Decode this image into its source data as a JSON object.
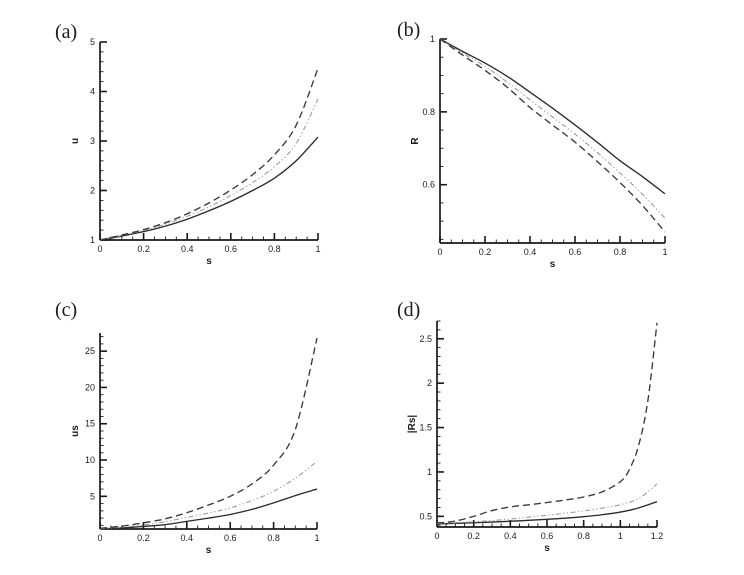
{
  "figure": {
    "background": "#ffffff",
    "text_color": "#1d1d1d",
    "axis_color": "#1a1a1a"
  },
  "chart_data": [
    {
      "type": "line",
      "panel_label": "(a)",
      "xlabel": "s",
      "ylabel": "u",
      "xlim": [
        0,
        1
      ],
      "ylim": [
        1,
        5
      ],
      "x_ticks": [
        0,
        0.2,
        0.4,
        0.6,
        0.8,
        1
      ],
      "x_tick_labels": [
        "0",
        "0.2",
        "0.4",
        "0.6",
        "0.8",
        "1"
      ],
      "x_minor_step": 0.05,
      "y_ticks": [
        1,
        2,
        3,
        4,
        5
      ],
      "y_tick_labels": [
        "1",
        "2",
        "3",
        "4",
        "5"
      ],
      "y_minor_step": 0.2,
      "grid": false,
      "legend": "none",
      "series": [
        {
          "name": "solid",
          "style": "solid",
          "color": "#2a2a2a",
          "x": [
            0,
            0.1,
            0.2,
            0.3,
            0.4,
            0.5,
            0.6,
            0.7,
            0.8,
            0.9,
            1
          ],
          "y": [
            1,
            1.08,
            1.17,
            1.28,
            1.42,
            1.59,
            1.78,
            2.0,
            2.25,
            2.6,
            3.08
          ]
        },
        {
          "name": "dash-dot-dot",
          "style": "dashdotdot",
          "color": "#9c9c9c",
          "x": [
            0,
            0.1,
            0.2,
            0.3,
            0.4,
            0.5,
            0.6,
            0.7,
            0.8,
            0.9,
            1
          ],
          "y": [
            1,
            1.09,
            1.19,
            1.32,
            1.48,
            1.67,
            1.9,
            2.16,
            2.48,
            2.95,
            3.85
          ]
        },
        {
          "name": "dashed",
          "style": "dashed",
          "color": "#3a3a3a",
          "x": [
            0,
            0.1,
            0.2,
            0.3,
            0.4,
            0.5,
            0.6,
            0.7,
            0.8,
            0.9,
            1
          ],
          "y": [
            1,
            1.1,
            1.21,
            1.35,
            1.53,
            1.75,
            2.01,
            2.32,
            2.72,
            3.32,
            4.47
          ]
        }
      ]
    },
    {
      "type": "line",
      "panel_label": "(b)",
      "xlabel": "s",
      "ylabel": "R",
      "xlim": [
        0,
        1
      ],
      "ylim": [
        0.44,
        1.0
      ],
      "x_ticks": [
        0,
        0.2,
        0.4,
        0.6,
        0.8,
        1
      ],
      "x_tick_labels": [
        "0",
        "0.2",
        "0.4",
        "0.6",
        "0.8",
        "1"
      ],
      "x_minor_step": 0.05,
      "y_ticks": [
        0.6,
        0.8,
        1
      ],
      "y_tick_labels": [
        "0.6",
        "0.8",
        "1"
      ],
      "y_minor_step": 0.05,
      "grid": false,
      "legend": "none",
      "series": [
        {
          "name": "solid",
          "style": "solid",
          "color": "#2a2a2a",
          "x": [
            0,
            0.1,
            0.2,
            0.3,
            0.4,
            0.5,
            0.6,
            0.7,
            0.8,
            0.9,
            1
          ],
          "y": [
            1,
            0.966,
            0.934,
            0.897,
            0.854,
            0.81,
            0.764,
            0.716,
            0.666,
            0.622,
            0.575
          ]
        },
        {
          "name": "dash-dot-dot",
          "style": "dashdotdot",
          "color": "#9c9c9c",
          "x": [
            0,
            0.1,
            0.2,
            0.3,
            0.4,
            0.5,
            0.6,
            0.7,
            0.8,
            0.9,
            1
          ],
          "y": [
            1,
            0.961,
            0.925,
            0.881,
            0.833,
            0.786,
            0.739,
            0.688,
            0.632,
            0.574,
            0.508
          ]
        },
        {
          "name": "dashed",
          "style": "dashed",
          "color": "#3a3a3a",
          "x": [
            0,
            0.1,
            0.2,
            0.3,
            0.4,
            0.5,
            0.6,
            0.7,
            0.8,
            0.9,
            1
          ],
          "y": [
            1,
            0.956,
            0.914,
            0.867,
            0.812,
            0.764,
            0.717,
            0.663,
            0.606,
            0.543,
            0.47
          ]
        }
      ]
    },
    {
      "type": "line",
      "panel_label": "(c)",
      "xlabel": "s",
      "ylabel": "us",
      "xlim": [
        0,
        1
      ],
      "ylim": [
        0.5,
        27.5
      ],
      "x_ticks": [
        0,
        0.2,
        0.4,
        0.6,
        0.8,
        1
      ],
      "x_tick_labels": [
        "0",
        "0.2",
        "0.4",
        "0.6",
        "0.8",
        "1"
      ],
      "x_minor_step": 0.05,
      "y_ticks": [
        5,
        10,
        15,
        20,
        25
      ],
      "y_tick_labels": [
        "5",
        "10",
        "15",
        "20",
        "25"
      ],
      "y_minor_step": 1,
      "grid": false,
      "legend": "none",
      "series": [
        {
          "name": "solid",
          "style": "solid",
          "color": "#2a2a2a",
          "x": [
            0,
            0.1,
            0.2,
            0.3,
            0.4,
            0.5,
            0.6,
            0.7,
            0.8,
            0.9,
            1
          ],
          "y": [
            0.5,
            0.65,
            0.85,
            1.1,
            1.55,
            2.0,
            2.5,
            3.2,
            4.1,
            5.1,
            6.0
          ]
        },
        {
          "name": "dash-dot-dot",
          "style": "dashdotdot",
          "color": "#9c9c9c",
          "x": [
            0,
            0.1,
            0.2,
            0.3,
            0.4,
            0.5,
            0.6,
            0.7,
            0.8,
            0.9,
            1
          ],
          "y": [
            0.55,
            0.75,
            1.05,
            1.5,
            2.1,
            2.7,
            3.4,
            4.4,
            5.7,
            7.5,
            9.8
          ]
        },
        {
          "name": "dashed",
          "style": "dashed",
          "color": "#3a3a3a",
          "x": [
            0,
            0.1,
            0.2,
            0.3,
            0.4,
            0.5,
            0.6,
            0.7,
            0.8,
            0.9,
            1
          ],
          "y": [
            0.6,
            0.9,
            1.35,
            1.9,
            2.75,
            3.8,
            5.0,
            6.7,
            9.3,
            14.2,
            26.8
          ]
        }
      ]
    },
    {
      "type": "line",
      "panel_label": "(d)",
      "xlabel": "s",
      "ylabel": "|Rs|",
      "xlim": [
        0,
        1.2
      ],
      "ylim": [
        0.38,
        2.7
      ],
      "x_ticks": [
        0,
        0.2,
        0.4,
        0.6,
        0.8,
        1,
        1.2
      ],
      "x_tick_labels": [
        "0",
        "0.2",
        "0.4",
        "0.6",
        "0.8",
        "1",
        "1.2"
      ],
      "x_minor_step": 0.05,
      "y_ticks": [
        0.5,
        1,
        1.5,
        2,
        2.5
      ],
      "y_tick_labels": [
        "0.5",
        "1",
        "1.5",
        "2",
        "2.5"
      ],
      "y_minor_step": 0.1,
      "grid": false,
      "legend": "none",
      "series": [
        {
          "name": "solid",
          "style": "solid",
          "color": "#2a2a2a",
          "x": [
            0,
            0.1,
            0.2,
            0.3,
            0.4,
            0.5,
            0.6,
            0.7,
            0.8,
            0.9,
            1,
            1.1,
            1.2
          ],
          "y": [
            0.415,
            0.421,
            0.428,
            0.436,
            0.445,
            0.455,
            0.466,
            0.479,
            0.496,
            0.518,
            0.548,
            0.595,
            0.665
          ]
        },
        {
          "name": "dash-dot-dot",
          "style": "dashdotdot",
          "color": "#9c9c9c",
          "x": [
            0,
            0.1,
            0.2,
            0.3,
            0.4,
            0.5,
            0.6,
            0.7,
            0.8,
            0.9,
            1,
            1.1,
            1.2
          ],
          "y": [
            0.42,
            0.428,
            0.439,
            0.453,
            0.47,
            0.49,
            0.512,
            0.535,
            0.561,
            0.592,
            0.632,
            0.7,
            0.865
          ]
        },
        {
          "name": "dashed",
          "style": "dashed",
          "color": "#3a3a3a",
          "x": [
            0,
            0.1,
            0.2,
            0.3,
            0.4,
            0.5,
            0.6,
            0.7,
            0.8,
            0.9,
            1,
            1.05,
            1.1,
            1.15,
            1.2
          ],
          "y": [
            0.425,
            0.447,
            0.5,
            0.565,
            0.606,
            0.63,
            0.656,
            0.684,
            0.718,
            0.775,
            0.89,
            1.03,
            1.3,
            1.8,
            2.68
          ]
        }
      ]
    }
  ]
}
